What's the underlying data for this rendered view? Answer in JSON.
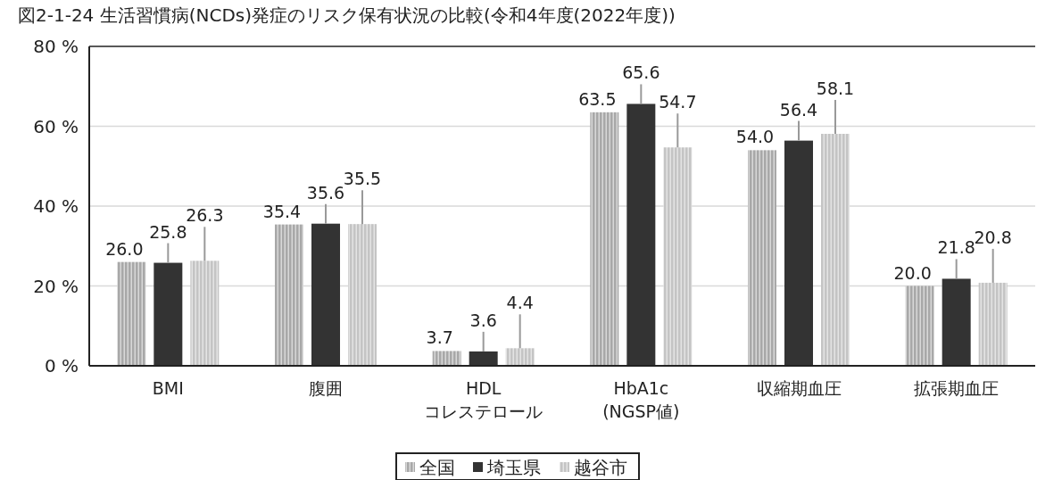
{
  "chart_data": {
    "type": "bar",
    "title": "図2-1-24 生活習慣病(NCDs)発症のリスク保有状況の比較(令和4年度(2022年度))",
    "categories": [
      "BMI",
      "腹囲",
      "HDL\nコレステロール",
      "HbA1c\n(NGSP値)",
      "収縮期血圧",
      "拡張期血圧"
    ],
    "series": [
      {
        "name": "全国",
        "color": "#a8a8a8",
        "values": [
          26.0,
          35.4,
          3.7,
          63.5,
          54.0,
          20.0
        ],
        "value_labels": [
          "26.0",
          "35.4",
          "3.7",
          "63.5",
          "54.0",
          "20.0"
        ]
      },
      {
        "name": "埼玉県",
        "color": "#333333",
        "values": [
          25.8,
          35.6,
          3.6,
          65.6,
          56.4,
          21.8
        ],
        "value_labels": [
          "25.8",
          "35.6",
          "3.6",
          "65.6",
          "56.4",
          "21.8"
        ]
      },
      {
        "name": "越谷市",
        "color": "#c4c4c4",
        "values": [
          26.3,
          35.5,
          4.4,
          54.7,
          58.1,
          20.8
        ],
        "value_labels": [
          "26.3",
          "35.5",
          "4.4",
          "54.7",
          "58.1",
          "20.8"
        ]
      }
    ],
    "ylim": [
      0,
      80
    ],
    "yticks": [
      {
        "value": 0,
        "label": "0 %"
      },
      {
        "value": 20,
        "label": "20 %"
      },
      {
        "value": 40,
        "label": "40 %"
      },
      {
        "value": 60,
        "label": "60 %"
      },
      {
        "value": 80,
        "label": "80 %"
      }
    ],
    "grid": "y",
    "legend": "bottom"
  }
}
